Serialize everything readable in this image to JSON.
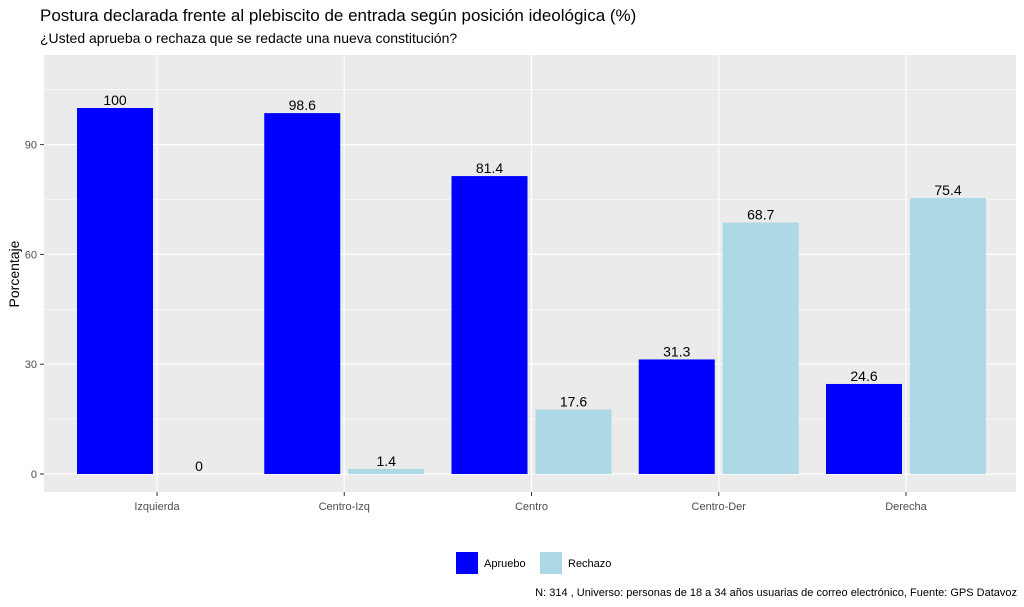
{
  "chart_data": {
    "type": "bar",
    "title": "Postura declarada frente al plebiscito de entrada según posición ideológica (%)",
    "subtitle": "¿Usted aprueba o rechaza que se redacte una nueva constitución?",
    "xlabel": "",
    "ylabel": "Porcentaje",
    "ylim": [
      0,
      110
    ],
    "yticks": [
      0,
      30,
      60,
      90
    ],
    "categories": [
      "Izquierda",
      "Centro-Izq",
      "Centro",
      "Centro-Der",
      "Derecha"
    ],
    "series": [
      {
        "name": "Apruebo",
        "color": "#0000ff",
        "values": [
          100,
          98.6,
          81.4,
          31.3,
          24.6
        ],
        "labels": [
          "100",
          "98.6",
          "81.4",
          "31.3",
          "24.6"
        ]
      },
      {
        "name": "Rechazo",
        "color": "#add8e6",
        "values": [
          0,
          1.4,
          17.6,
          68.7,
          75.4
        ],
        "labels": [
          "0",
          "1.4",
          "17.6",
          "68.7",
          "75.4"
        ]
      }
    ],
    "grid": true,
    "legend_position": "bottom",
    "caption": "N: 314 , Universo: personas de 18 a 34 años usuarias de correo electrónico, Fuente: GPS Datavoz",
    "panel_background": "#ebebeb"
  }
}
